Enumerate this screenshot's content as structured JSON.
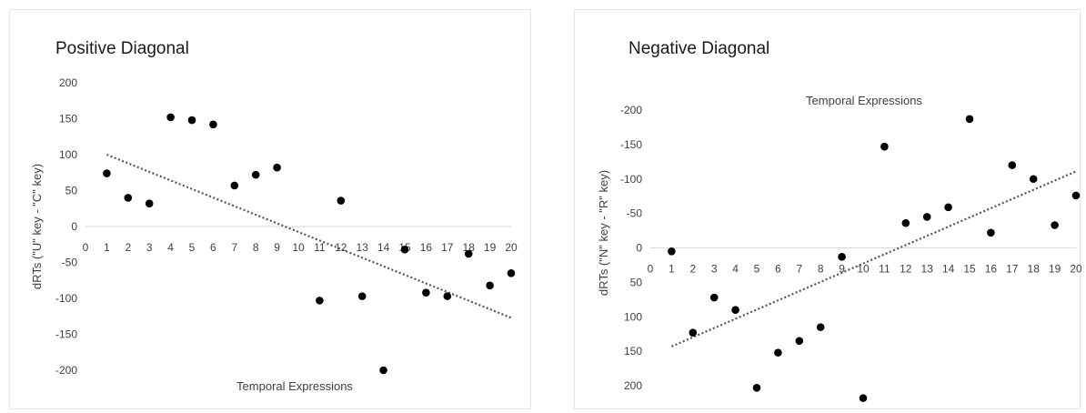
{
  "chart_data": [
    {
      "type": "scatter",
      "title": "Positive Diagonal",
      "xlabel": "Temporal Expressions",
      "ylabel": "dRTs (\"U\" key - \"C\" key)",
      "xlim": [
        0,
        20
      ],
      "ylim": [
        -200,
        200
      ],
      "y_inverted": false,
      "x_ticks": [
        0,
        1,
        2,
        3,
        4,
        5,
        6,
        7,
        8,
        9,
        10,
        11,
        12,
        13,
        14,
        15,
        16,
        17,
        18,
        19,
        20
      ],
      "y_ticks": [
        200,
        150,
        100,
        50,
        0,
        -50,
        -100,
        -150,
        -200
      ],
      "grid": false,
      "trendline": {
        "style": "dotted",
        "type": "linear",
        "x": [
          1,
          20
        ],
        "y": [
          100,
          -127
        ]
      },
      "marker_color": "#000000",
      "series": [
        {
          "x": [
            1,
            2,
            3,
            4,
            5,
            6,
            7,
            8,
            9,
            11,
            12,
            13,
            14,
            15,
            16,
            17,
            18,
            19,
            20
          ],
          "y": [
            74,
            40,
            32,
            152,
            148,
            142,
            57,
            72,
            82,
            -103,
            36,
            -97,
            -200,
            -32,
            -92,
            -97,
            -38,
            -82,
            -65
          ]
        }
      ]
    },
    {
      "type": "scatter",
      "title": "Negative Diagonal",
      "xlabel": "Temporal Expressions",
      "ylabel": "dRTs (\"N\" key - \"R\" key)",
      "xlim": [
        0,
        20
      ],
      "ylim": [
        -200,
        200
      ],
      "y_inverted": true,
      "x_ticks": [
        0,
        1,
        2,
        3,
        4,
        5,
        6,
        7,
        8,
        9,
        10,
        11,
        12,
        13,
        14,
        15,
        16,
        17,
        18,
        19,
        20
      ],
      "y_ticks": [
        -200,
        -150,
        -100,
        -50,
        0,
        50,
        100,
        150,
        200
      ],
      "grid": false,
      "trendline": {
        "style": "dotted",
        "type": "linear",
        "x": [
          1,
          20
        ],
        "y": [
          143,
          -111
        ]
      },
      "marker_color": "#000000",
      "series": [
        {
          "x": [
            1,
            2,
            3,
            4,
            5,
            6,
            7,
            8,
            9,
            10,
            11,
            12,
            13,
            14,
            15,
            16,
            17,
            18,
            19,
            20
          ],
          "y": [
            5,
            123,
            72,
            90,
            203,
            152,
            135,
            115,
            13,
            218,
            -147,
            -36,
            -45,
            -59,
            -187,
            -22,
            -120,
            -100,
            -33,
            -76
          ]
        }
      ]
    }
  ]
}
